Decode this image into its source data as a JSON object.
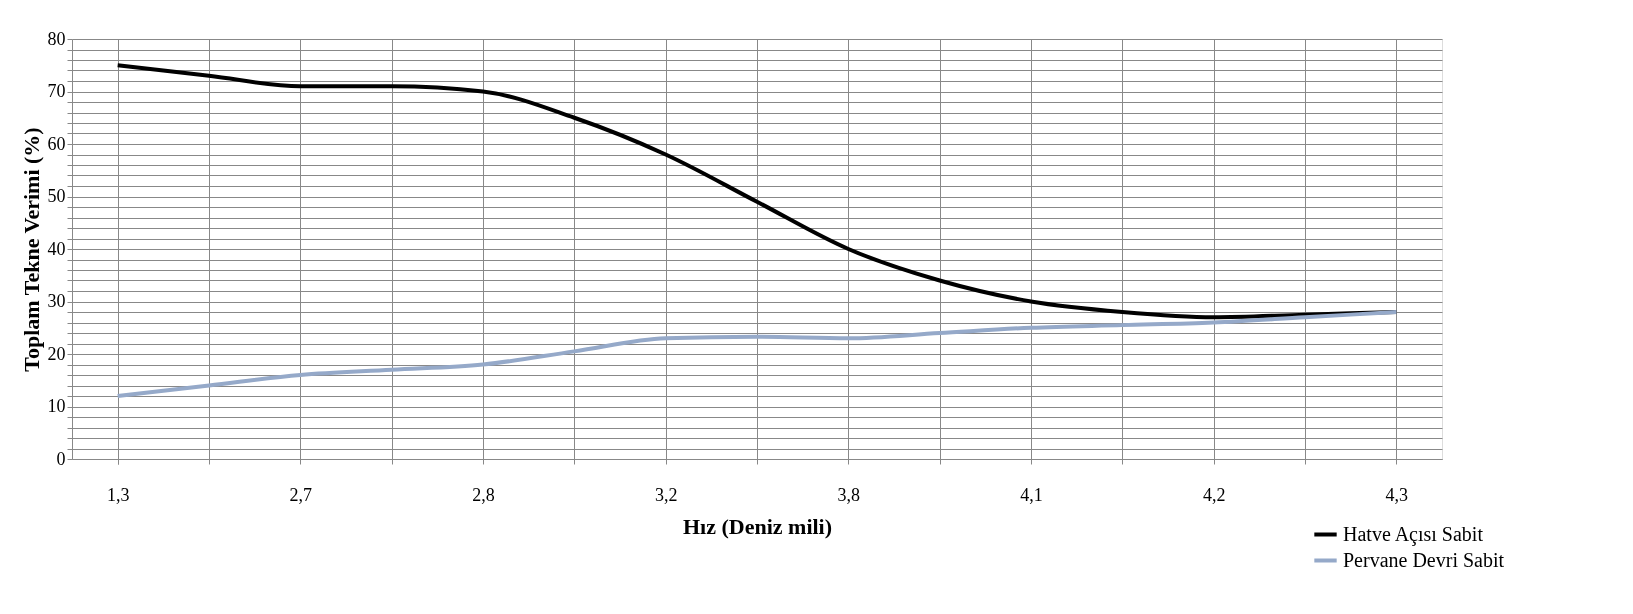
{
  "chart_data": {
    "type": "line",
    "xlabel": "Hız (Deniz mili)",
    "ylabel": "Toplam Tekne Verimi (%)",
    "categories": [
      "1,3",
      null,
      "2,7",
      null,
      "2,8",
      null,
      "3,2",
      null,
      "3,8",
      null,
      "4,1",
      null,
      "4,2",
      null,
      "4,3"
    ],
    "series": [
      {
        "name": "Hatve Açısı Sabit",
        "color": "#000000",
        "values": [
          75,
          73,
          71,
          71,
          70,
          65,
          58,
          49,
          40,
          34,
          30,
          28,
          27,
          27.5,
          28
        ]
      },
      {
        "name": "Pervane Devri Sabit",
        "color": "#95a9c9",
        "values": [
          12,
          14,
          16,
          17,
          18,
          20.5,
          23,
          23.3,
          23,
          24,
          25,
          25.5,
          26,
          27,
          28
        ]
      }
    ],
    "ylim": [
      0,
      80
    ],
    "yticks": [
      0,
      {
        "value": 2,
        "label": null
      },
      {
        "value": 4,
        "label": null
      },
      {
        "value": 6,
        "label": null
      },
      {
        "value": 8,
        "label": null
      },
      10,
      {
        "value": 12,
        "label": null
      },
      {
        "value": 14,
        "label": null
      },
      {
        "value": 16,
        "label": null
      },
      {
        "value": 18,
        "label": null
      },
      20,
      {
        "value": 22,
        "label": null
      },
      {
        "value": 24,
        "label": null
      },
      {
        "value": 26,
        "label": null
      },
      {
        "value": 28,
        "label": null
      },
      30,
      {
        "value": 32,
        "label": null
      },
      {
        "value": 34,
        "label": null
      },
      {
        "value": 36,
        "label": null
      },
      {
        "value": 38,
        "label": null
      },
      40,
      {
        "value": 42,
        "label": null
      },
      {
        "value": 44,
        "label": null
      },
      {
        "value": 46,
        "label": null
      },
      {
        "value": 48,
        "label": null
      },
      50,
      {
        "value": 52,
        "label": null
      },
      {
        "value": 54,
        "label": null
      },
      {
        "value": 56,
        "label": null
      },
      {
        "value": 58,
        "label": null
      },
      60,
      {
        "value": 62,
        "label": null
      },
      {
        "value": 64,
        "label": null
      },
      {
        "value": 66,
        "label": null
      },
      {
        "value": 68,
        "label": null
      },
      70,
      {
        "value": 72,
        "label": null
      },
      {
        "value": 74,
        "label": null
      },
      {
        "value": 76,
        "label": null
      },
      {
        "value": 78,
        "label": null
      },
      80
    ],
    "grid": true,
    "legend": "bottom right",
    "marker": "none",
    "line_style": "solid"
  }
}
